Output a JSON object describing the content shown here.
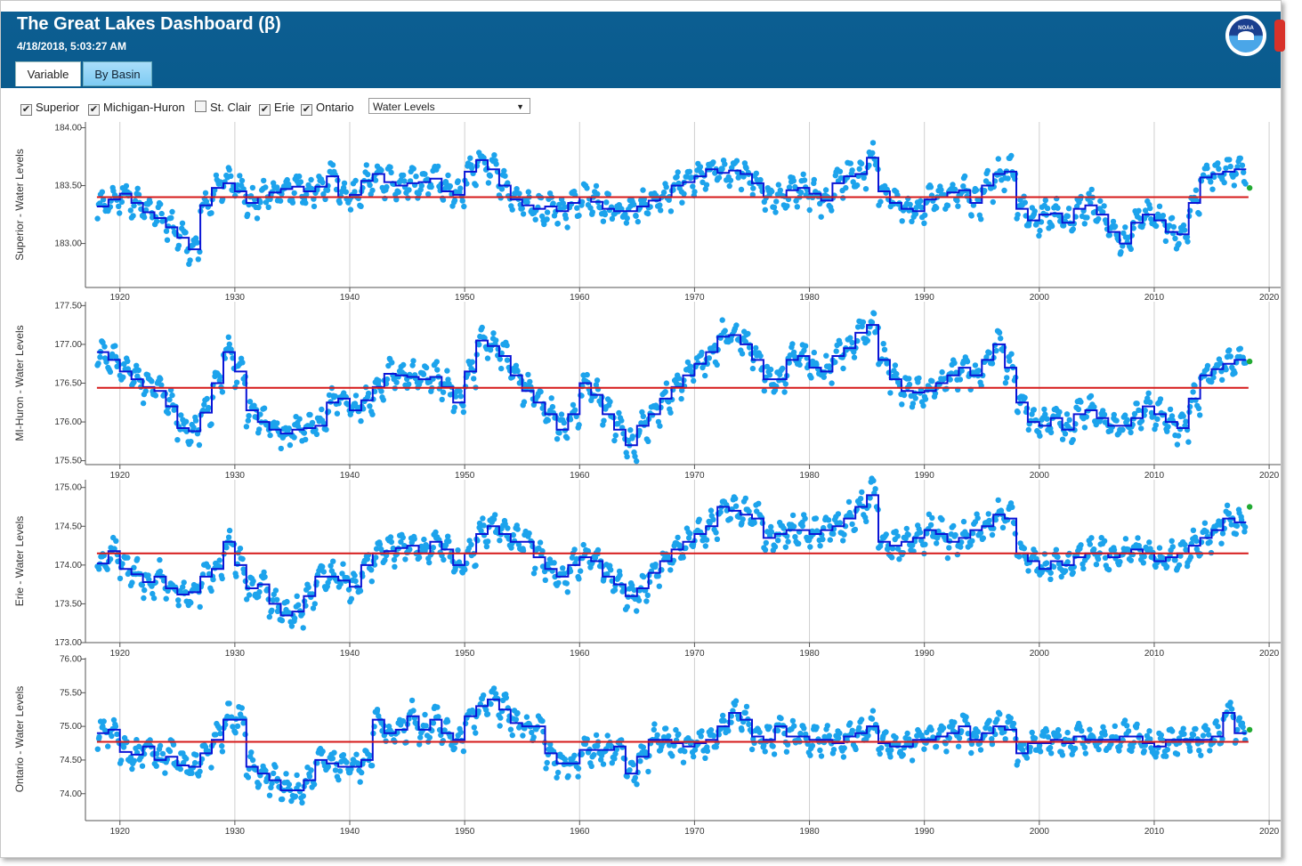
{
  "app": {
    "title": "The Great Lakes Dashboard (β)",
    "timestamp": "4/18/2018, 5:03:27 AM",
    "logo_text": "NOAA"
  },
  "tabs": [
    {
      "label": "Variable",
      "active": true
    },
    {
      "label": "By Basin",
      "active": false
    }
  ],
  "controls": {
    "checkboxes": [
      {
        "label": "Superior",
        "checked": true
      },
      {
        "label": "Michigan-Huron",
        "checked": true
      },
      {
        "label": "St. Clair",
        "checked": false
      },
      {
        "label": "Erie",
        "checked": true
      },
      {
        "label": "Ontario",
        "checked": true
      }
    ],
    "variable_select": "Water Levels"
  },
  "colors": {
    "header": "#0a5b8d",
    "points": "#1ca3ec",
    "annual_mean": "#0a14d6",
    "long_term_mean": "#d61a1a",
    "latest": "#22aa33"
  },
  "chart_data": [
    {
      "type": "scatter",
      "ylabel": "Superior - Water Levels",
      "xlim": [
        1917,
        2021
      ],
      "xticks": [
        1920,
        1930,
        1940,
        1950,
        1960,
        1970,
        1980,
        1990,
        2000,
        2010,
        2020
      ],
      "ylim": [
        182.62,
        184.05
      ],
      "yticks": [
        183.0,
        183.5,
        184.0
      ],
      "ytick_labels": [
        "183.00",
        "183.50",
        "184.00"
      ],
      "long_term_mean": 183.4,
      "latest": {
        "x": 2018.3,
        "y": 183.48
      },
      "series": [
        {
          "label": "Monthly levels",
          "kind": "points"
        },
        {
          "label": "Annual mean",
          "kind": "step"
        },
        {
          "label": "Long-term mean",
          "kind": "line"
        }
      ],
      "annual_x": [
        1918,
        1919,
        1920,
        1921,
        1922,
        1923,
        1924,
        1925,
        1926,
        1927,
        1928,
        1929,
        1930,
        1931,
        1932,
        1933,
        1934,
        1935,
        1936,
        1937,
        1938,
        1939,
        1940,
        1941,
        1942,
        1943,
        1944,
        1945,
        1946,
        1947,
        1948,
        1949,
        1950,
        1951,
        1952,
        1953,
        1954,
        1955,
        1956,
        1957,
        1958,
        1959,
        1960,
        1961,
        1962,
        1963,
        1964,
        1965,
        1966,
        1967,
        1968,
        1969,
        1970,
        1971,
        1972,
        1973,
        1974,
        1975,
        1976,
        1977,
        1978,
        1979,
        1980,
        1981,
        1982,
        1983,
        1984,
        1985,
        1986,
        1987,
        1988,
        1989,
        1990,
        1991,
        1992,
        1993,
        1994,
        1995,
        1996,
        1997,
        1998,
        1999,
        2000,
        2001,
        2002,
        2003,
        2004,
        2005,
        2006,
        2007,
        2008,
        2009,
        2010,
        2011,
        2012,
        2013,
        2014,
        2015,
        2016,
        2017
      ],
      "annual_values": [
        183.32,
        183.38,
        183.43,
        183.35,
        183.27,
        183.22,
        183.14,
        183.05,
        182.95,
        183.33,
        183.48,
        183.52,
        183.45,
        183.35,
        183.4,
        183.44,
        183.47,
        183.49,
        183.45,
        183.49,
        183.58,
        183.4,
        183.42,
        183.54,
        183.6,
        183.53,
        183.5,
        183.52,
        183.53,
        183.56,
        183.45,
        183.42,
        183.62,
        183.72,
        183.64,
        183.5,
        183.38,
        183.33,
        183.3,
        183.32,
        183.28,
        183.35,
        183.4,
        183.36,
        183.3,
        183.28,
        183.28,
        183.32,
        183.37,
        183.4,
        183.5,
        183.53,
        183.58,
        183.64,
        183.61,
        183.63,
        183.6,
        183.52,
        183.4,
        183.4,
        183.46,
        183.48,
        183.43,
        183.37,
        183.52,
        183.58,
        183.6,
        183.74,
        183.45,
        183.35,
        183.3,
        183.28,
        183.38,
        183.4,
        183.44,
        183.46,
        183.35,
        183.5,
        183.6,
        183.62,
        183.3,
        183.2,
        183.25,
        183.26,
        183.18,
        183.3,
        183.33,
        183.25,
        183.1,
        183.0,
        183.18,
        183.25,
        183.2,
        183.1,
        183.08,
        183.35,
        183.57,
        183.6,
        183.62,
        183.64
      ]
    },
    {
      "type": "scatter",
      "ylabel": "MI-Huron - Water Levels",
      "xlim": [
        1917,
        2021
      ],
      "xticks": [
        1920,
        1930,
        1940,
        1950,
        1960,
        1970,
        1980,
        1990,
        2000,
        2010,
        2020
      ],
      "ylim": [
        175.45,
        177.55
      ],
      "yticks": [
        175.5,
        176.0,
        176.5,
        177.0,
        177.5
      ],
      "ytick_labels": [
        "175.50",
        "176.00",
        "176.50",
        "177.00",
        "177.50"
      ],
      "long_term_mean": 176.44,
      "latest": {
        "x": 2018.3,
        "y": 176.78
      },
      "series": [
        {
          "label": "Monthly levels",
          "kind": "points"
        },
        {
          "label": "Annual mean",
          "kind": "step"
        },
        {
          "label": "Long-term mean",
          "kind": "line"
        }
      ],
      "annual_x": [
        1918,
        1919,
        1920,
        1921,
        1922,
        1923,
        1924,
        1925,
        1926,
        1927,
        1928,
        1929,
        1930,
        1931,
        1932,
        1933,
        1934,
        1935,
        1936,
        1937,
        1938,
        1939,
        1940,
        1941,
        1942,
        1943,
        1944,
        1945,
        1946,
        1947,
        1948,
        1949,
        1950,
        1951,
        1952,
        1953,
        1954,
        1955,
        1956,
        1957,
        1958,
        1959,
        1960,
        1961,
        1962,
        1963,
        1964,
        1965,
        1966,
        1967,
        1968,
        1969,
        1970,
        1971,
        1972,
        1973,
        1974,
        1975,
        1976,
        1977,
        1978,
        1979,
        1980,
        1981,
        1982,
        1983,
        1984,
        1985,
        1986,
        1987,
        1988,
        1989,
        1990,
        1991,
        1992,
        1993,
        1994,
        1995,
        1996,
        1997,
        1998,
        1999,
        2000,
        2001,
        2002,
        2003,
        2004,
        2005,
        2006,
        2007,
        2008,
        2009,
        2010,
        2011,
        2012,
        2013,
        2014,
        2015,
        2016,
        2017
      ],
      "annual_values": [
        176.9,
        176.8,
        176.65,
        176.55,
        176.45,
        176.4,
        176.2,
        175.92,
        175.88,
        176.12,
        176.5,
        176.9,
        176.65,
        176.15,
        176.0,
        175.9,
        175.85,
        175.9,
        175.92,
        175.95,
        176.25,
        176.3,
        176.15,
        176.28,
        176.45,
        176.62,
        176.6,
        176.58,
        176.55,
        176.58,
        176.45,
        176.25,
        176.65,
        177.05,
        176.98,
        176.85,
        176.6,
        176.4,
        176.25,
        176.1,
        175.9,
        176.1,
        176.5,
        176.35,
        176.1,
        175.9,
        175.7,
        175.95,
        176.1,
        176.3,
        176.45,
        176.6,
        176.75,
        176.9,
        177.1,
        177.12,
        177.0,
        176.8,
        176.55,
        176.55,
        176.8,
        176.85,
        176.7,
        176.65,
        176.85,
        176.95,
        177.15,
        177.25,
        176.8,
        176.55,
        176.4,
        176.38,
        176.4,
        176.5,
        176.6,
        176.7,
        176.6,
        176.8,
        177.0,
        176.7,
        176.25,
        176.0,
        175.95,
        176.05,
        175.9,
        176.1,
        176.15,
        176.05,
        175.95,
        175.95,
        176.05,
        176.2,
        176.1,
        176.0,
        175.92,
        176.3,
        176.6,
        176.68,
        176.75,
        176.8
      ]
    },
    {
      "type": "scatter",
      "ylabel": "Erie - Water Levels",
      "xlim": [
        1917,
        2021
      ],
      "xticks": [
        1920,
        1930,
        1940,
        1950,
        1960,
        1970,
        1980,
        1990,
        2000,
        2010,
        2020
      ],
      "ylim": [
        173.0,
        175.1
      ],
      "yticks": [
        173.0,
        173.5,
        174.0,
        174.5,
        175.0
      ],
      "ytick_labels": [
        "173.00",
        "173.50",
        "174.00",
        "174.50",
        "175.00"
      ],
      "long_term_mean": 174.15,
      "latest": {
        "x": 2018.3,
        "y": 174.75
      },
      "series": [
        {
          "label": "Monthly levels",
          "kind": "points"
        },
        {
          "label": "Annual mean",
          "kind": "step"
        },
        {
          "label": "Long-term mean",
          "kind": "line"
        }
      ],
      "annual_x": [
        1918,
        1919,
        1920,
        1921,
        1922,
        1923,
        1924,
        1925,
        1926,
        1927,
        1928,
        1929,
        1930,
        1931,
        1932,
        1933,
        1934,
        1935,
        1936,
        1937,
        1938,
        1939,
        1940,
        1941,
        1942,
        1943,
        1944,
        1945,
        1946,
        1947,
        1948,
        1949,
        1950,
        1951,
        1952,
        1953,
        1954,
        1955,
        1956,
        1957,
        1958,
        1959,
        1960,
        1961,
        1962,
        1963,
        1964,
        1965,
        1966,
        1967,
        1968,
        1969,
        1970,
        1971,
        1972,
        1973,
        1974,
        1975,
        1976,
        1977,
        1978,
        1979,
        1980,
        1981,
        1982,
        1983,
        1984,
        1985,
        1986,
        1987,
        1988,
        1989,
        1990,
        1991,
        1992,
        1993,
        1994,
        1995,
        1996,
        1997,
        1998,
        1999,
        2000,
        2001,
        2002,
        2003,
        2004,
        2005,
        2006,
        2007,
        2008,
        2009,
        2010,
        2011,
        2012,
        2013,
        2014,
        2015,
        2016,
        2017
      ],
      "annual_values": [
        174.02,
        174.18,
        173.95,
        173.88,
        173.78,
        173.85,
        173.7,
        173.62,
        173.65,
        173.85,
        173.95,
        174.3,
        174.0,
        173.7,
        173.75,
        173.5,
        173.35,
        173.4,
        173.6,
        173.85,
        173.85,
        173.8,
        173.72,
        174.0,
        174.15,
        174.18,
        174.22,
        174.25,
        174.15,
        174.3,
        174.2,
        174.0,
        174.15,
        174.4,
        174.5,
        174.4,
        174.3,
        174.3,
        174.1,
        173.95,
        173.85,
        174.0,
        174.1,
        174.05,
        173.85,
        173.75,
        173.6,
        173.7,
        173.9,
        174.05,
        174.2,
        174.3,
        174.4,
        174.5,
        174.75,
        174.7,
        174.65,
        174.6,
        174.35,
        174.4,
        174.45,
        174.45,
        174.4,
        174.45,
        174.5,
        174.6,
        174.75,
        174.9,
        174.3,
        174.25,
        174.3,
        174.35,
        174.45,
        174.4,
        174.3,
        174.35,
        174.45,
        174.5,
        174.65,
        174.6,
        174.15,
        174.05,
        173.95,
        174.05,
        174.0,
        174.1,
        174.15,
        174.15,
        174.1,
        174.15,
        174.2,
        174.15,
        174.05,
        174.1,
        174.15,
        174.25,
        174.35,
        174.45,
        174.6,
        174.55
      ]
    },
    {
      "type": "scatter",
      "ylabel": "Ontario - Water Levels",
      "xlim": [
        1917,
        2021
      ],
      "xticks": [
        1920,
        1930,
        1940,
        1950,
        1960,
        1970,
        1980,
        1990,
        2000,
        2010,
        2020
      ],
      "ylim": [
        73.6,
        76.02
      ],
      "yticks": [
        74.0,
        74.5,
        75.0,
        75.5,
        76.0
      ],
      "ytick_labels": [
        "74.00",
        "74.50",
        "75.00",
        "75.50",
        "76.00"
      ],
      "long_term_mean": 74.77,
      "latest": {
        "x": 2018.3,
        "y": 74.95
      },
      "series": [
        {
          "label": "Monthly levels",
          "kind": "points"
        },
        {
          "label": "Annual mean",
          "kind": "step"
        },
        {
          "label": "Long-term mean",
          "kind": "line"
        }
      ],
      "annual_x": [
        1918,
        1919,
        1920,
        1921,
        1922,
        1923,
        1924,
        1925,
        1926,
        1927,
        1928,
        1929,
        1930,
        1931,
        1932,
        1933,
        1934,
        1935,
        1936,
        1937,
        1938,
        1939,
        1940,
        1941,
        1942,
        1943,
        1944,
        1945,
        1946,
        1947,
        1948,
        1949,
        1950,
        1951,
        1952,
        1953,
        1954,
        1955,
        1956,
        1957,
        1958,
        1959,
        1960,
        1961,
        1962,
        1963,
        1964,
        1965,
        1966,
        1967,
        1968,
        1969,
        1970,
        1971,
        1972,
        1973,
        1974,
        1975,
        1976,
        1977,
        1978,
        1979,
        1980,
        1981,
        1982,
        1983,
        1984,
        1985,
        1986,
        1987,
        1988,
        1989,
        1990,
        1991,
        1992,
        1993,
        1994,
        1995,
        1996,
        1997,
        1998,
        1999,
        2000,
        2001,
        2002,
        2003,
        2004,
        2005,
        2006,
        2007,
        2008,
        2009,
        2010,
        2011,
        2012,
        2013,
        2014,
        2015,
        2016,
        2017
      ],
      "annual_values": [
        74.9,
        74.95,
        74.62,
        74.58,
        74.7,
        74.5,
        74.55,
        74.42,
        74.4,
        74.6,
        74.8,
        75.1,
        75.1,
        74.4,
        74.3,
        74.2,
        74.05,
        74.05,
        74.2,
        74.5,
        74.45,
        74.4,
        74.4,
        74.5,
        75.1,
        74.9,
        74.95,
        75.15,
        74.95,
        75.1,
        74.9,
        74.8,
        75.15,
        75.3,
        75.4,
        75.25,
        75.05,
        75.0,
        75.0,
        74.6,
        74.45,
        74.45,
        74.65,
        74.65,
        74.65,
        74.7,
        74.3,
        74.55,
        74.8,
        74.8,
        74.75,
        74.7,
        74.75,
        74.8,
        75.0,
        75.2,
        75.1,
        74.85,
        74.8,
        75.0,
        74.85,
        74.85,
        74.8,
        74.8,
        74.75,
        74.85,
        74.9,
        75.0,
        74.75,
        74.7,
        74.7,
        74.8,
        74.8,
        74.85,
        74.9,
        75.0,
        74.8,
        74.9,
        75.0,
        74.95,
        74.6,
        74.75,
        74.75,
        74.8,
        74.75,
        74.85,
        74.8,
        74.8,
        74.8,
        74.85,
        74.85,
        74.75,
        74.7,
        74.8,
        74.8,
        74.8,
        74.8,
        74.85,
        75.2,
        74.9
      ]
    }
  ]
}
